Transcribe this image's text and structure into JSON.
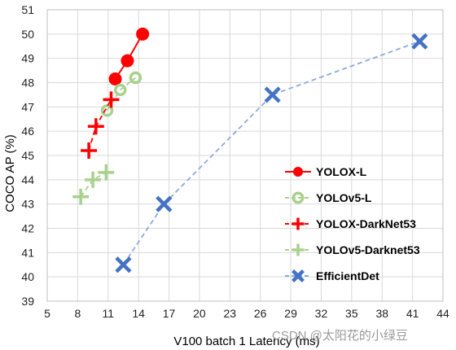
{
  "chart_data": {
    "type": "line",
    "title": "",
    "xlabel": "V100 batch 1 Latency (ms)",
    "ylabel": "COCO AP (%)",
    "xlim": [
      5,
      44
    ],
    "ylim": [
      39,
      51
    ],
    "xticks": [
      "5",
      "8",
      "11",
      "14",
      "17",
      "20",
      "23",
      "26",
      "29",
      "32",
      "35",
      "38",
      "41",
      "44"
    ],
    "yticks": [
      "39",
      "40",
      "41",
      "42",
      "43",
      "44",
      "45",
      "46",
      "47",
      "48",
      "49",
      "50",
      "51"
    ],
    "grid": "vertical and horizontal",
    "legend_position": "right",
    "series": [
      {
        "name": "YOLOX-L",
        "color": "#ff0000",
        "line": "solid",
        "marker": "filled-circle",
        "points": [
          [
            11.7,
            48.15
          ],
          [
            12.9,
            48.9
          ],
          [
            14.4,
            50.0
          ]
        ]
      },
      {
        "name": "YOLOv5-L",
        "color": "#a9d18e",
        "line": "dashed",
        "marker": "open-circle",
        "points": [
          [
            10.9,
            46.85
          ],
          [
            12.2,
            47.7
          ],
          [
            13.7,
            48.2
          ]
        ]
      },
      {
        "name": "YOLOX-DarkNet53",
        "color": "#ff0000",
        "line": "dashed",
        "marker": "plus",
        "points": [
          [
            9.1,
            45.2
          ],
          [
            9.8,
            46.2
          ],
          [
            11.3,
            47.3
          ]
        ]
      },
      {
        "name": "YOLOv5-Darknet53",
        "color": "#a9d18e",
        "line": "dashed",
        "marker": "plus",
        "points": [
          [
            8.3,
            43.3
          ],
          [
            9.5,
            44.0
          ],
          [
            10.8,
            44.3
          ]
        ]
      },
      {
        "name": "EfficientDet",
        "color": "#4472c4",
        "line": "dashed",
        "marker": "x",
        "points": [
          [
            12.5,
            40.5
          ],
          [
            16.5,
            43.0
          ],
          [
            27.2,
            47.5
          ],
          [
            41.7,
            49.7
          ]
        ]
      }
    ]
  },
  "watermark": "CSDN @太阳花的小绿豆"
}
